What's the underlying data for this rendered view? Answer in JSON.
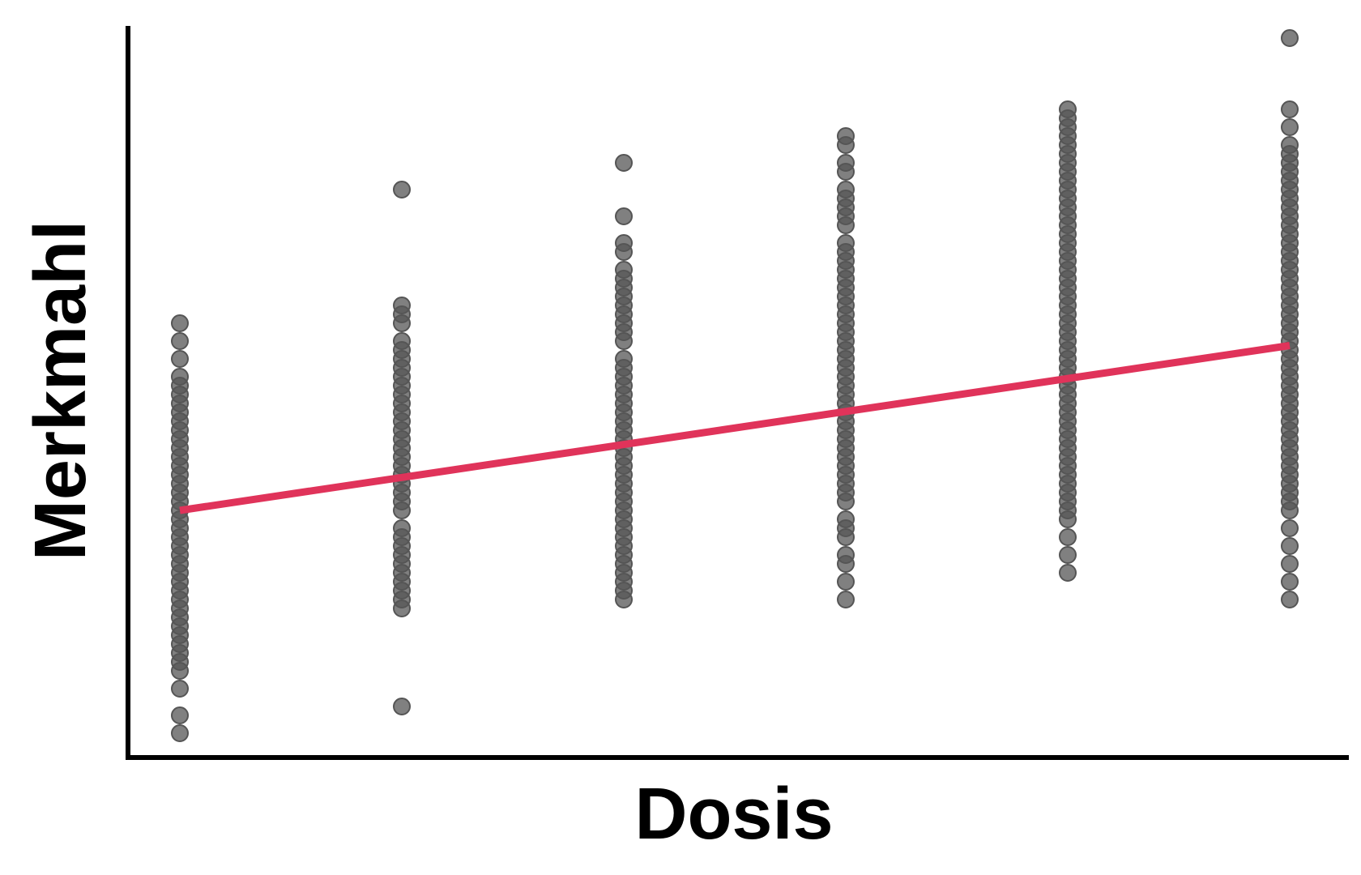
{
  "chart_data": {
    "type": "scatter",
    "title": "",
    "xlabel": "Dosis",
    "ylabel": "Merkmahl",
    "x_ticks_shown": false,
    "y_ticks_shown": false,
    "xlim": [
      -0.25,
      5.25
    ],
    "ylim": [
      -3.2,
      5.0
    ],
    "grid": false,
    "legend": "none",
    "colors": {
      "points": "#555555",
      "fit_line": "#e0335a",
      "axes": "#000000"
    },
    "series": [
      {
        "x": 0,
        "y": [
          2.1,
          1.9,
          1.7,
          1.5,
          1.4,
          1.3,
          1.2,
          1.1,
          1.0,
          0.9,
          0.8,
          0.7,
          0.6,
          0.5,
          0.4,
          0.3,
          0.2,
          0.1,
          0.0,
          -0.1,
          -0.2,
          -0.3,
          -0.4,
          -0.5,
          -0.6,
          -0.7,
          -0.8,
          -0.9,
          -1.0,
          -1.1,
          -1.2,
          -1.3,
          -1.4,
          -1.5,
          -1.6,
          -1.7,
          -1.8,
          -2.0,
          -2.3,
          -2.5
        ]
      },
      {
        "x": 1,
        "y": [
          3.6,
          2.3,
          2.2,
          2.1,
          1.9,
          1.8,
          1.7,
          1.6,
          1.5,
          1.4,
          1.3,
          1.2,
          1.1,
          1.0,
          0.9,
          0.8,
          0.7,
          0.6,
          0.5,
          0.4,
          0.3,
          0.2,
          0.1,
          0.0,
          -0.2,
          -0.3,
          -0.4,
          -0.5,
          -0.6,
          -0.7,
          -0.8,
          -0.9,
          -1.0,
          -1.1,
          -2.2
        ]
      },
      {
        "x": 2,
        "y": [
          3.9,
          3.3,
          3.0,
          2.9,
          2.7,
          2.6,
          2.5,
          2.4,
          2.3,
          2.2,
          2.1,
          2.0,
          1.9,
          1.7,
          1.6,
          1.5,
          1.4,
          1.3,
          1.2,
          1.1,
          1.0,
          0.9,
          0.8,
          0.7,
          0.6,
          0.5,
          0.4,
          0.3,
          0.2,
          0.1,
          0.0,
          -0.1,
          -0.2,
          -0.3,
          -0.4,
          -0.5,
          -0.6,
          -0.7,
          -0.8,
          -0.9,
          -1.0
        ]
      },
      {
        "x": 3,
        "y": [
          4.2,
          4.1,
          3.9,
          3.8,
          3.6,
          3.5,
          3.4,
          3.3,
          3.2,
          3.0,
          2.9,
          2.8,
          2.7,
          2.6,
          2.5,
          2.4,
          2.3,
          2.2,
          2.1,
          2.0,
          1.9,
          1.8,
          1.7,
          1.6,
          1.5,
          1.4,
          1.3,
          1.2,
          1.1,
          1.0,
          0.9,
          0.8,
          0.7,
          0.6,
          0.5,
          0.4,
          0.3,
          0.2,
          0.1,
          -0.1,
          -0.2,
          -0.3,
          -0.5,
          -0.6,
          -0.8,
          -1.0
        ]
      },
      {
        "x": 4,
        "y": [
          4.5,
          4.4,
          4.3,
          4.2,
          4.1,
          4.0,
          3.9,
          3.8,
          3.7,
          3.6,
          3.5,
          3.4,
          3.3,
          3.2,
          3.1,
          3.0,
          2.9,
          2.8,
          2.7,
          2.6,
          2.5,
          2.4,
          2.3,
          2.2,
          2.1,
          2.0,
          1.9,
          1.8,
          1.7,
          1.6,
          1.5,
          1.4,
          1.3,
          1.2,
          1.1,
          1.0,
          0.9,
          0.8,
          0.7,
          0.6,
          0.5,
          0.4,
          0.3,
          0.2,
          0.1,
          0.0,
          -0.1,
          -0.3,
          -0.5,
          -0.7
        ]
      },
      {
        "x": 5,
        "y": [
          5.3,
          4.5,
          4.3,
          4.1,
          4.0,
          3.9,
          3.8,
          3.7,
          3.6,
          3.5,
          3.4,
          3.3,
          3.2,
          3.1,
          3.0,
          2.9,
          2.8,
          2.7,
          2.6,
          2.5,
          2.4,
          2.3,
          2.2,
          2.1,
          2.0,
          1.9,
          1.8,
          1.7,
          1.6,
          1.5,
          1.4,
          1.3,
          1.2,
          1.1,
          1.0,
          0.9,
          0.8,
          0.7,
          0.6,
          0.5,
          0.4,
          0.3,
          0.2,
          0.1,
          0.0,
          -0.2,
          -0.4,
          -0.6,
          -0.8,
          -1.0
        ]
      }
    ],
    "fit_line": {
      "x": [
        0,
        5
      ],
      "y": [
        0.0,
        1.85
      ]
    }
  }
}
